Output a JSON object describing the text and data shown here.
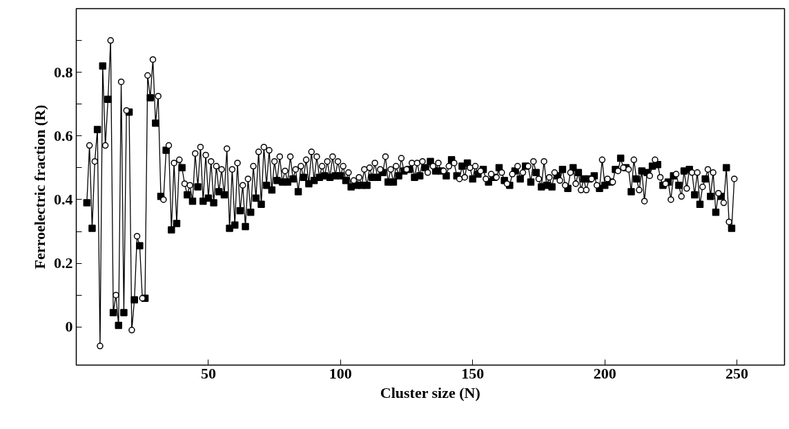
{
  "chart_data": {
    "type": "line",
    "xlabel": "Cluster size (N)",
    "ylabel": "Ferroelectric fraction (R)",
    "xlim": [
      0,
      268
    ],
    "ylim": [
      -0.12,
      1.0
    ],
    "xticks": [
      50,
      100,
      150,
      200,
      250
    ],
    "yticks": [
      0,
      {
        "value": 0.1,
        "label": null
      },
      0.2,
      {
        "value": 0.3,
        "label": null
      },
      0.4,
      {
        "value": 0.5,
        "label": null
      },
      0.6,
      {
        "value": 0.7,
        "label": null
      },
      0.8,
      {
        "value": 0.9,
        "label": null
      }
    ],
    "grid": false,
    "series": [
      {
        "color": "#000000",
        "marker": "none",
        "line_style": "solid",
        "x": [
          4,
          5,
          6,
          7,
          8,
          9,
          10,
          11,
          12,
          13,
          14,
          15,
          16,
          17,
          18,
          19,
          20,
          21,
          22,
          23,
          24,
          25,
          26,
          27,
          28,
          29,
          30,
          31,
          32,
          33,
          34,
          35,
          36,
          37,
          38,
          39,
          40,
          41,
          42,
          43,
          44,
          45,
          46,
          47,
          48,
          49,
          50,
          51,
          52,
          53,
          54,
          55,
          56,
          57,
          58,
          59,
          60,
          61,
          62,
          63,
          64,
          65,
          66,
          67,
          68,
          69,
          70,
          71,
          72,
          73,
          74,
          75,
          76,
          77,
          78,
          79,
          80,
          81,
          82,
          83,
          84,
          85,
          86,
          87,
          88,
          89,
          90,
          91,
          92,
          93,
          94,
          95,
          96,
          97,
          98,
          99,
          100,
          101,
          102,
          103,
          104,
          105,
          106,
          107,
          108,
          109,
          110,
          111,
          112,
          113,
          114,
          115,
          116,
          117,
          118,
          119,
          120,
          121,
          122,
          123,
          124,
          125,
          126,
          127,
          128,
          129,
          130,
          131,
          132,
          133,
          134,
          135,
          136,
          137,
          138,
          139,
          140,
          141,
          142,
          143,
          144,
          145,
          146,
          147,
          148,
          149,
          150,
          151,
          152,
          153,
          154,
          155,
          156,
          157,
          158,
          159,
          160,
          161,
          162,
          163,
          164,
          165,
          166,
          167,
          168,
          169,
          170,
          171,
          172,
          173,
          174,
          175,
          176,
          177,
          178,
          179,
          180,
          181,
          182,
          183,
          184,
          185,
          186,
          187,
          188,
          189,
          190,
          191,
          192,
          193,
          194,
          195,
          196,
          197,
          198,
          199,
          200,
          201,
          202,
          203,
          204,
          205,
          206,
          207,
          208,
          209,
          210,
          211,
          212,
          213,
          214,
          215,
          216,
          217,
          218,
          219,
          220,
          221,
          222,
          223,
          224,
          225,
          226,
          227,
          228,
          229,
          230,
          231,
          232,
          233,
          234,
          235,
          236,
          237,
          238,
          239,
          240,
          241,
          242,
          243,
          244,
          245,
          246,
          247,
          248,
          249
        ],
        "values": [
          0.39,
          0.57,
          0.31,
          0.52,
          0.62,
          -0.06,
          0.82,
          0.57,
          0.715,
          0.9,
          0.045,
          0.1,
          0.005,
          0.77,
          0.045,
          0.68,
          0.675,
          -0.01,
          0.085,
          0.285,
          0.255,
          0.09,
          0.09,
          0.79,
          0.72,
          0.84,
          0.64,
          0.725,
          0.41,
          0.4,
          0.555,
          0.57,
          0.305,
          0.515,
          0.325,
          0.525,
          0.5,
          0.45,
          0.415,
          0.445,
          0.395,
          0.545,
          0.44,
          0.565,
          0.395,
          0.54,
          0.405,
          0.52,
          0.39,
          0.505,
          0.425,
          0.495,
          0.415,
          0.56,
          0.31,
          0.495,
          0.32,
          0.515,
          0.365,
          0.445,
          0.315,
          0.465,
          0.36,
          0.505,
          0.405,
          0.55,
          0.385,
          0.565,
          0.445,
          0.555,
          0.43,
          0.52,
          0.46,
          0.535,
          0.455,
          0.49,
          0.455,
          0.535,
          0.465,
          0.495,
          0.425,
          0.505,
          0.47,
          0.525,
          0.45,
          0.55,
          0.46,
          0.535,
          0.47,
          0.505,
          0.475,
          0.52,
          0.47,
          0.535,
          0.475,
          0.52,
          0.475,
          0.505,
          0.46,
          0.485,
          0.44,
          0.46,
          0.445,
          0.47,
          0.445,
          0.495,
          0.445,
          0.5,
          0.47,
          0.515,
          0.47,
          0.495,
          0.485,
          0.535,
          0.455,
          0.495,
          0.455,
          0.505,
          0.475,
          0.53,
          0.49,
          0.495,
          0.495,
          0.515,
          0.47,
          0.515,
          0.475,
          0.52,
          0.5,
          0.485,
          0.52,
          0.505,
          0.49,
          0.515,
          0.49,
          0.49,
          0.475,
          0.505,
          0.525,
          0.515,
          0.475,
          0.465,
          0.505,
          0.47,
          0.515,
          0.5,
          0.465,
          0.505,
          0.48,
          0.49,
          0.495,
          0.465,
          0.455,
          0.48,
          0.47,
          0.47,
          0.5,
          0.485,
          0.46,
          0.45,
          0.445,
          0.48,
          0.49,
          0.505,
          0.465,
          0.485,
          0.505,
          0.505,
          0.455,
          0.52,
          0.485,
          0.465,
          0.44,
          0.52,
          0.445,
          0.47,
          0.44,
          0.485,
          0.475,
          0.46,
          0.495,
          0.445,
          0.435,
          0.485,
          0.5,
          0.45,
          0.485,
          0.43,
          0.465,
          0.43,
          0.465,
          0.465,
          0.475,
          0.445,
          0.435,
          0.525,
          0.445,
          0.465,
          0.455,
          0.455,
          0.495,
          0.49,
          0.53,
          0.5,
          0.5,
          0.495,
          0.425,
          0.525,
          0.465,
          0.43,
          0.49,
          0.395,
          0.485,
          0.475,
          0.505,
          0.525,
          0.51,
          0.47,
          0.445,
          0.45,
          0.455,
          0.4,
          0.475,
          0.48,
          0.445,
          0.41,
          0.49,
          0.435,
          0.495,
          0.485,
          0.415,
          0.485,
          0.385,
          0.44,
          0.465,
          0.495,
          0.41,
          0.485,
          0.36,
          0.42,
          0.41,
          0.39,
          0.5,
          0.33,
          0.31,
          0.465
        ]
      },
      {
        "type": "scatter",
        "color": "#000000",
        "marker": "square",
        "x": [
          4,
          6,
          8,
          10,
          12,
          14,
          16,
          18,
          20,
          22,
          24,
          26,
          28,
          30,
          32,
          34,
          36,
          38,
          40,
          42,
          44,
          46,
          48,
          50,
          52,
          54,
          56,
          58,
          60,
          62,
          64,
          66,
          68,
          70,
          72,
          74,
          76,
          78,
          80,
          82,
          84,
          86,
          88,
          90,
          92,
          94,
          96,
          98,
          100,
          102,
          104,
          106,
          108,
          110,
          112,
          114,
          116,
          118,
          120,
          122,
          124,
          126,
          128,
          130,
          132,
          134,
          136,
          138,
          140,
          142,
          144,
          146,
          148,
          150,
          152,
          154,
          156,
          158,
          160,
          162,
          164,
          166,
          168,
          170,
          172,
          174,
          176,
          178,
          180,
          182,
          184,
          186,
          188,
          190,
          192,
          194,
          196,
          198,
          200,
          202,
          204,
          206,
          208,
          210,
          212,
          214,
          216,
          218,
          220,
          222,
          224,
          226,
          228,
          230,
          232,
          234,
          236,
          238,
          240,
          242,
          244,
          246,
          248
        ],
        "values": [
          0.39,
          0.31,
          0.62,
          0.82,
          0.715,
          0.045,
          0.005,
          0.045,
          0.675,
          0.085,
          0.255,
          0.09,
          0.72,
          0.64,
          0.41,
          0.555,
          0.305,
          0.325,
          0.5,
          0.415,
          0.395,
          0.44,
          0.395,
          0.405,
          0.39,
          0.425,
          0.415,
          0.31,
          0.32,
          0.365,
          0.315,
          0.36,
          0.405,
          0.385,
          0.445,
          0.43,
          0.46,
          0.455,
          0.455,
          0.465,
          0.425,
          0.47,
          0.45,
          0.46,
          0.47,
          0.475,
          0.47,
          0.475,
          0.475,
          0.46,
          0.44,
          0.445,
          0.445,
          0.445,
          0.47,
          0.47,
          0.485,
          0.455,
          0.455,
          0.475,
          0.49,
          0.495,
          0.47,
          0.475,
          0.5,
          0.52,
          0.49,
          0.49,
          0.475,
          0.525,
          0.475,
          0.505,
          0.515,
          0.465,
          0.48,
          0.495,
          0.455,
          0.47,
          0.5,
          0.46,
          0.445,
          0.49,
          0.465,
          0.505,
          0.455,
          0.485,
          0.44,
          0.445,
          0.44,
          0.475,
          0.495,
          0.435,
          0.5,
          0.485,
          0.465,
          0.465,
          0.475,
          0.435,
          0.445,
          0.455,
          0.495,
          0.53,
          0.5,
          0.425,
          0.465,
          0.49,
          0.485,
          0.505,
          0.51,
          0.445,
          0.455,
          0.475,
          0.445,
          0.49,
          0.495,
          0.415,
          0.385,
          0.465,
          0.41,
          0.36,
          0.41,
          0.5,
          0.31
        ]
      },
      {
        "type": "scatter",
        "color": "#000000",
        "marker": "circle",
        "x": [
          5,
          7,
          9,
          11,
          13,
          15,
          17,
          19,
          21,
          23,
          25,
          27,
          29,
          31,
          33,
          35,
          37,
          39,
          41,
          43,
          45,
          47,
          49,
          51,
          53,
          55,
          57,
          59,
          61,
          63,
          65,
          67,
          69,
          71,
          73,
          75,
          77,
          79,
          81,
          83,
          85,
          87,
          89,
          91,
          93,
          95,
          97,
          99,
          101,
          103,
          105,
          107,
          109,
          111,
          113,
          115,
          117,
          119,
          121,
          123,
          125,
          127,
          129,
          131,
          133,
          135,
          137,
          139,
          141,
          143,
          145,
          147,
          149,
          151,
          153,
          155,
          157,
          159,
          161,
          163,
          165,
          167,
          169,
          171,
          173,
          175,
          177,
          179,
          181,
          183,
          185,
          187,
          189,
          191,
          193,
          195,
          197,
          199,
          201,
          203,
          205,
          207,
          209,
          211,
          213,
          215,
          217,
          219,
          221,
          223,
          225,
          227,
          229,
          231,
          233,
          235,
          237,
          239,
          241,
          243,
          245,
          247,
          249
        ],
        "values": [
          0.57,
          0.52,
          -0.06,
          0.57,
          0.9,
          0.1,
          0.77,
          0.68,
          -0.01,
          0.285,
          0.09,
          0.79,
          0.84,
          0.725,
          0.4,
          0.57,
          0.515,
          0.525,
          0.45,
          0.445,
          0.545,
          0.565,
          0.54,
          0.52,
          0.505,
          0.495,
          0.56,
          0.495,
          0.515,
          0.445,
          0.465,
          0.505,
          0.55,
          0.565,
          0.555,
          0.52,
          0.535,
          0.49,
          0.535,
          0.495,
          0.505,
          0.525,
          0.55,
          0.535,
          0.505,
          0.52,
          0.535,
          0.52,
          0.505,
          0.485,
          0.46,
          0.47,
          0.495,
          0.5,
          0.515,
          0.495,
          0.535,
          0.495,
          0.505,
          0.53,
          0.495,
          0.515,
          0.515,
          0.52,
          0.485,
          0.505,
          0.515,
          0.49,
          0.505,
          0.515,
          0.465,
          0.47,
          0.5,
          0.505,
          0.49,
          0.465,
          0.48,
          0.47,
          0.485,
          0.45,
          0.48,
          0.505,
          0.485,
          0.505,
          0.52,
          0.465,
          0.52,
          0.47,
          0.485,
          0.46,
          0.445,
          0.485,
          0.45,
          0.43,
          0.43,
          0.465,
          0.445,
          0.525,
          0.465,
          0.455,
          0.49,
          0.5,
          0.495,
          0.525,
          0.43,
          0.395,
          0.475,
          0.525,
          0.47,
          0.45,
          0.4,
          0.48,
          0.41,
          0.435,
          0.485,
          0.485,
          0.44,
          0.495,
          0.485,
          0.42,
          0.39,
          0.33,
          0.465
        ]
      }
    ]
  }
}
